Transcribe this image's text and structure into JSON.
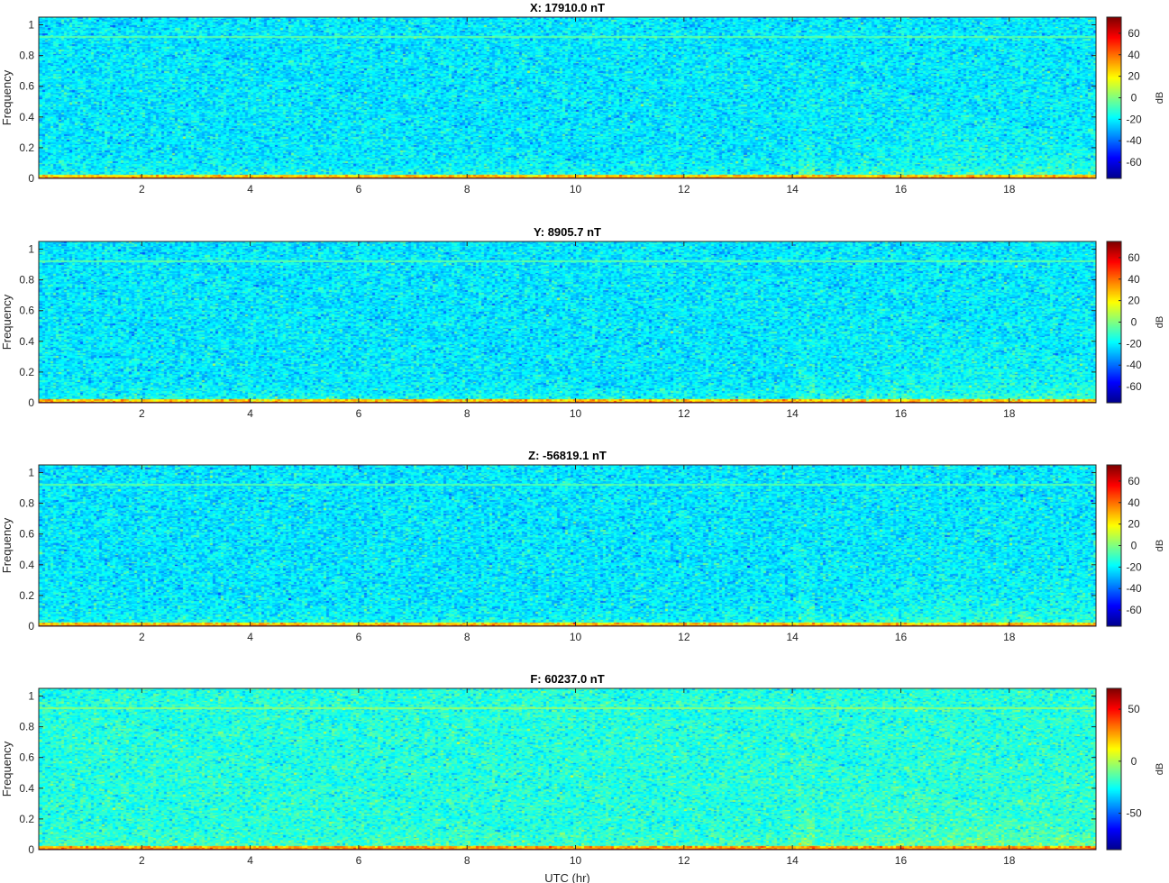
{
  "chart_data": [
    {
      "type": "heatmap",
      "title": "X: 17910.0 nT",
      "ylabel": "Frequency",
      "xlabel": "",
      "xlim": [
        0.1,
        19.6
      ],
      "ylim": [
        0,
        1.05
      ],
      "x_ticks": [
        2,
        4,
        6,
        8,
        10,
        12,
        14,
        16,
        18
      ],
      "y_ticks": [
        0,
        0.2,
        0.4,
        0.6,
        0.8,
        1
      ],
      "colorbar": {
        "label": "dB",
        "ticks": [
          -60,
          -40,
          -20,
          0,
          20,
          40,
          60
        ],
        "range": [
          -75,
          75
        ]
      },
      "features": {
        "low_freq_band_db": 65,
        "horizontal_line_freq": 0.925,
        "enhanced_activity_hours": [
          14,
          19.5
        ]
      }
    },
    {
      "type": "heatmap",
      "title": "Y: 8905.7 nT",
      "ylabel": "Frequency",
      "xlabel": "",
      "xlim": [
        0.1,
        19.6
      ],
      "ylim": [
        0,
        1.05
      ],
      "x_ticks": [
        2,
        4,
        6,
        8,
        10,
        12,
        14,
        16,
        18
      ],
      "y_ticks": [
        0,
        0.2,
        0.4,
        0.6,
        0.8,
        1
      ],
      "colorbar": {
        "label": "dB",
        "ticks": [
          -60,
          -40,
          -20,
          0,
          20,
          40,
          60
        ],
        "range": [
          -75,
          75
        ]
      },
      "features": {
        "low_freq_band_db": 65,
        "horizontal_line_freq": 0.925,
        "enhanced_activity_hours": [
          14,
          19.5
        ]
      }
    },
    {
      "type": "heatmap",
      "title": "Z: -56819.1 nT",
      "ylabel": "Frequency",
      "xlabel": "",
      "xlim": [
        0.1,
        19.6
      ],
      "ylim": [
        0,
        1.05
      ],
      "x_ticks": [
        2,
        4,
        6,
        8,
        10,
        12,
        14,
        16,
        18
      ],
      "y_ticks": [
        0,
        0.2,
        0.4,
        0.6,
        0.8,
        1
      ],
      "colorbar": {
        "label": "dB",
        "ticks": [
          -60,
          -40,
          -20,
          0,
          20,
          40,
          60
        ],
        "range": [
          -75,
          75
        ]
      },
      "features": {
        "low_freq_band_db": 65,
        "horizontal_line_freq": 0.925,
        "enhanced_activity_hours": [
          14,
          19.5
        ]
      }
    },
    {
      "type": "heatmap",
      "title": "F: 60237.0 nT",
      "ylabel": "Frequency",
      "xlabel": "UTC (hr)",
      "xlim": [
        0.1,
        19.6
      ],
      "ylim": [
        0,
        1.05
      ],
      "x_ticks": [
        2,
        4,
        6,
        8,
        10,
        12,
        14,
        16,
        18
      ],
      "y_ticks": [
        0,
        0.2,
        0.4,
        0.6,
        0.8,
        1
      ],
      "colorbar": {
        "label": "dB",
        "ticks": [
          -50,
          0,
          50
        ],
        "range": [
          -85,
          70
        ]
      },
      "features": {
        "low_freq_band_db": 60,
        "horizontal_line_freq": 0.925,
        "enhanced_activity_hours": [
          14,
          19.5
        ]
      }
    }
  ],
  "colormap": {
    "name": "jet",
    "stops": [
      "#00008f",
      "#0000ff",
      "#0080ff",
      "#00ffff",
      "#80ff80",
      "#ffff00",
      "#ff8000",
      "#ff0000",
      "#800000"
    ]
  }
}
